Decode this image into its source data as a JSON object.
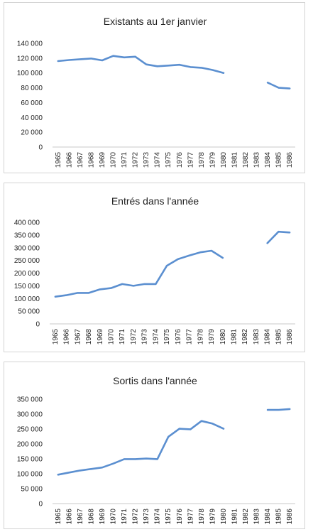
{
  "chart_data": [
    {
      "type": "line",
      "title": "Existants au 1er janvier",
      "categories": [
        "1965",
        "1966",
        "1967",
        "1968",
        "1969",
        "1970",
        "1971",
        "1972",
        "1973",
        "1974",
        "1975",
        "1976",
        "1977",
        "1978",
        "1979",
        "1980",
        "1981",
        "1982",
        "1983",
        "1984",
        "1985",
        "1986"
      ],
      "series": [
        {
          "values": [
            116000,
            117500,
            118500,
            119500,
            117000,
            123000,
            121000,
            122000,
            111500,
            109000,
            110000,
            111000,
            108000,
            107000,
            104000,
            100000,
            null,
            null,
            null,
            87000,
            80000,
            79000
          ]
        }
      ],
      "ylim": [
        0,
        140000
      ],
      "yticks": [
        0,
        20000,
        40000,
        60000,
        80000,
        100000,
        120000,
        140000
      ],
      "ytick_labels": [
        "0",
        "20 000",
        "40 000",
        "60 000",
        "80 000",
        "100 000",
        "120 000",
        "140 000"
      ],
      "xlabel": "",
      "ylabel": "",
      "grid": false,
      "legend": "none",
      "line_color": "#5b8fd0"
    },
    {
      "type": "line",
      "title": "Entrés dans l'année",
      "categories": [
        "1965",
        "1966",
        "1967",
        "1968",
        "1969",
        "1970",
        "1971",
        "1972",
        "1973",
        "1974",
        "1975",
        "1976",
        "1977",
        "1978",
        "1979",
        "1980",
        "1981",
        "1982",
        "1983",
        "1984",
        "1985",
        "1986"
      ],
      "series": [
        {
          "values": [
            107000,
            113000,
            122000,
            122000,
            136000,
            141000,
            157000,
            150000,
            157000,
            157000,
            229000,
            255000,
            269000,
            282000,
            288000,
            260000,
            null,
            null,
            null,
            318000,
            363000,
            360000
          ]
        }
      ],
      "ylim": [
        0,
        400000
      ],
      "yticks": [
        0,
        50000,
        100000,
        150000,
        200000,
        250000,
        300000,
        350000,
        400000
      ],
      "ytick_labels": [
        "0",
        "50 000",
        "100 000",
        "150 000",
        "200 000",
        "250 000",
        "300 000",
        "350 000",
        "400 000"
      ],
      "xlabel": "",
      "ylabel": "",
      "grid": false,
      "legend": "none",
      "line_color": "#5b8fd0"
    },
    {
      "type": "line",
      "title": "Sortis dans l'année",
      "categories": [
        "1965",
        "1966",
        "1967",
        "1968",
        "1969",
        "1970",
        "1971",
        "1972",
        "1973",
        "1974",
        "1975",
        "1976",
        "1977",
        "1978",
        "1979",
        "1980",
        "1981",
        "1982",
        "1983",
        "1984",
        "1985",
        "1986"
      ],
      "series": [
        {
          "values": [
            97000,
            104000,
            111000,
            116000,
            121000,
            134000,
            149000,
            149000,
            151000,
            149000,
            224000,
            251000,
            249000,
            277000,
            268000,
            251000,
            null,
            null,
            null,
            314000,
            314000,
            317000
          ]
        }
      ],
      "ylim": [
        0,
        350000
      ],
      "yticks": [
        0,
        50000,
        100000,
        150000,
        200000,
        250000,
        300000,
        350000
      ],
      "ytick_labels": [
        "0",
        "50 000",
        "100 000",
        "150 000",
        "200 000",
        "250 000",
        "300 000",
        "350 000"
      ],
      "xlabel": "",
      "ylabel": "",
      "grid": false,
      "legend": "none",
      "line_color": "#5b8fd0"
    }
  ]
}
